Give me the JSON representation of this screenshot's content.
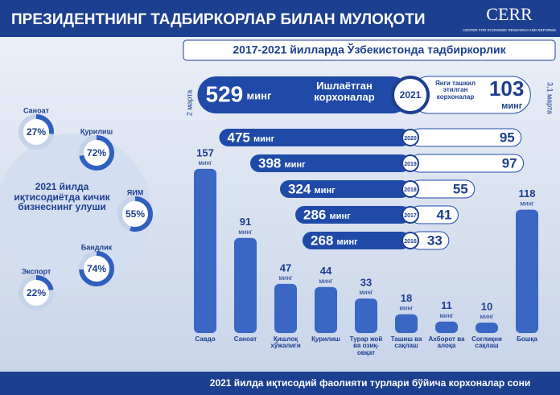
{
  "header": {
    "title": "ПРЕЗИДЕНТНИНГ ТАДБИРКОРЛАР БИЛАН МУЛОҚОТИ",
    "subtitle": "2017-2021 йилларда Ўзбекистонда тадбиркорлик",
    "logo": "CERR",
    "logo_sub": "CENTER FOR ECONOMIC RESEARCH AND REFORMS"
  },
  "chart_data": [
    {
      "type": "diverging-bar",
      "categories": [
        "2021",
        "2020",
        "2019",
        "2018",
        "2017",
        "2016"
      ],
      "unit": "минг",
      "series": [
        {
          "name": "Ишлаётган корхоналар",
          "color": "#1f4aa8",
          "values": [
            529,
            475,
            398,
            324,
            286,
            268
          ]
        },
        {
          "name": "Янги ташкил этилган корхоналар",
          "color": "#ffffff",
          "values": [
            103,
            95,
            97,
            55,
            41,
            33
          ]
        }
      ],
      "annotations": [
        "2 марта",
        "3,1 марта"
      ]
    },
    {
      "type": "gauge",
      "title": "2021 йилда иқтисодиётда кичик бизнеснинг улуши",
      "categories": [
        "Саноат",
        "Қурилиш",
        "ЯИМ",
        "Бандлик",
        "Экспорт"
      ],
      "values": [
        27,
        72,
        55,
        74,
        22
      ],
      "value_labels": [
        "27%",
        "72%",
        "55%",
        "74%",
        "22%"
      ],
      "color": "#2f5fbf"
    },
    {
      "type": "bar",
      "title": "2021 йилда иқтисодий фаолияти турлари бўйича корхоналар сони",
      "unit": "минг",
      "categories": [
        "Савдо",
        "Саноат",
        "Қишлоқ хўжалиги",
        "Қурилиш",
        "Турар жой ва озиқ-овқат",
        "Ташиш ва сақлаш",
        "Ахборот ва алоқа",
        "Соғлиқни сақлаш",
        "Бошқа"
      ],
      "values": [
        157,
        91,
        47,
        44,
        33,
        18,
        11,
        10,
        118
      ],
      "color": "#3a66c4"
    }
  ]
}
